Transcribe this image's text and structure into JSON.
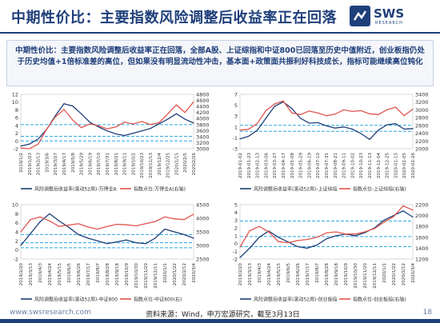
{
  "header": {
    "title": "中期性价比：主要指数风险调整后收益率正在回落",
    "logo_text": "SWS",
    "logo_sub": "RESEARCH",
    "colors": {
      "brand": "#1f3f7a",
      "accent_red": "#e0554f"
    }
  },
  "summary": {
    "text": "中期性价比：主要指数风险调整后收益率正在回落，全部A股、上证综指和中证800已回落至历史中值附近，创业板指仍处于历史均值+1倍标准差的高位，但如果没有明显流动性冲击，基本面+政策面共振利好科技成长，指标可能继续高位钝化"
  },
  "footer": {
    "url": "www.swsresearch.com",
    "source": "资料来源：Wind，申万宏源研究，截至3月13日",
    "page": "18"
  },
  "chart_data": [
    {
      "type": "line",
      "x": [
        "2019/1/2",
        "2019/1/23",
        "2019/2/18",
        "2019/3/7",
        "2019/3/27",
        "2019/4/17",
        "2019/5/8",
        "2019/5/29",
        "2019/6/19",
        "2019/7/10",
        "2019/7/31",
        "2019/8/21",
        "2019/9/11",
        "2019/10/2",
        "2019/10/23",
        "2019/11/13",
        "2019/12/4",
        "2019/12/25",
        "2020/1/15",
        "2020/2/5",
        "2020/2/26"
      ],
      "x_ticks": [
        "2019/1/2",
        "2019/1/23",
        "2019/2/13",
        "2019/3/6",
        "2019/3/27",
        "2019/4/17",
        "2019/5/8",
        "2019/5/29",
        "2019/6/19",
        "2019/7/10",
        "2019/7/31",
        "2019/8/21",
        "2019/9/11",
        "2019/10/2",
        "2019/10/23",
        "2019/11/13",
        "2019/12/4",
        "2019/12/25",
        "2020/1/15",
        "2020/2/5",
        "2020/2/26"
      ],
      "y_left_ticks": [
        "-2",
        "0",
        "2",
        "4",
        "6",
        "8",
        "10",
        "12"
      ],
      "y_right_ticks": [
        "3000",
        "3200",
        "3400",
        "3600",
        "3800",
        "4000",
        "4200",
        "4400",
        "4600",
        "4800"
      ],
      "ylim_left": [
        -2,
        12
      ],
      "ylim_right": [
        3000,
        4800
      ],
      "reference_lines": [
        0.0,
        1.2,
        4.2
      ],
      "series": [
        {
          "name": "风险调整后收益率(滚动52周)-万得全A",
          "axis": "left",
          "color": "#1f3f7a",
          "values": [
            -1.3,
            -0.8,
            0.5,
            3.0,
            6.5,
            9.6,
            9.0,
            7.0,
            4.8,
            3.6,
            2.6,
            1.8,
            1.4,
            2.0,
            2.6,
            3.2,
            4.4,
            5.6,
            7.0,
            5.6,
            4.6
          ]
        },
        {
          "name": "指数点位-万得全A(右轴)",
          "axis": "right",
          "color": "#e0554f",
          "values": [
            3020,
            3000,
            3150,
            3650,
            4050,
            4300,
            3950,
            3700,
            3820,
            3760,
            3660,
            3720,
            3880,
            3820,
            3900,
            3800,
            3860,
            4150,
            4450,
            4200,
            4550
          ]
        }
      ]
    },
    {
      "type": "line",
      "x": [
        "2019-01-02",
        "2019-01-23",
        "2019-02-13",
        "2019-03-06",
        "2019-03-27",
        "2019-04-17",
        "2019-05-08",
        "2019-05-29",
        "2019-06-19",
        "2019-07-10",
        "2019-07-31",
        "2019-08-21",
        "2019-09-11",
        "2019-10-02",
        "2019-10-23",
        "2019-11-13",
        "2019-12-04",
        "2019-12-25",
        "2020-01-15",
        "2020-02-05",
        "2020-02-26"
      ],
      "x_ticks": [
        "2019-01-02",
        "2019-01-23",
        "2019-02-13",
        "2019-03-06",
        "2019-03-27",
        "2019-04-17",
        "2019-05-08",
        "2019-05-29",
        "2019-06-19",
        "2019-07-10",
        "2019-07-31",
        "2019-08-21",
        "2019-09-11",
        "2019-10-02",
        "2019-10-23",
        "2019-11-13",
        "2019-12-04",
        "2019-12-25",
        "2020-01-15",
        "2020-02-05",
        "2020-02-26"
      ],
      "y_left_ticks": [
        "-3",
        "-1",
        "1",
        "3",
        "5",
        "7"
      ],
      "y_right_ticks": [
        "2000",
        "2200",
        "2400",
        "2600",
        "2800",
        "3000",
        "3200",
        "3400"
      ],
      "ylim_left": [
        -3,
        7
      ],
      "ylim_right": [
        2000,
        3400
      ],
      "reference_lines": [
        0.2,
        1.3
      ],
      "series": [
        {
          "name": "风险调整后收益率(滚动52周)-上证综指",
          "axis": "left",
          "color": "#1f3f7a",
          "values": [
            -1.2,
            -0.7,
            0.4,
            2.6,
            4.8,
            5.6,
            4.4,
            2.6,
            1.7,
            1.8,
            1.2,
            0.8,
            1.0,
            0.6,
            -0.2,
            -1.3,
            0.4,
            1.4,
            1.6,
            0.6,
            0.7
          ]
        },
        {
          "name": "指数点位-上证综指(右轴)",
          "axis": "right",
          "color": "#e0554f",
          "values": [
            2480,
            2500,
            2650,
            2980,
            3150,
            3230,
            2920,
            2880,
            2970,
            2920,
            2850,
            2890,
            3000,
            2960,
            2980,
            2900,
            2880,
            3000,
            3070,
            2850,
            3020
          ]
        }
      ]
    },
    {
      "type": "line",
      "x": [
        "2019/2/20",
        "2019/3/13",
        "2019/4/3",
        "2019/4/24",
        "2019/5/15",
        "2019/6/5",
        "2019/6/26",
        "2019/7/17",
        "2019/8/7",
        "2019/8/28",
        "2019/9/18",
        "2019/10/9",
        "2019/10/30",
        "2019/11/20",
        "2019/12/11",
        "2020/1/1",
        "2020/1/22",
        "2020/2/12",
        "2020/3/4"
      ],
      "x_ticks": [
        "2019/2/20",
        "2019/3/13",
        "2019/4/3",
        "2019/4/24",
        "2019/5/15",
        "2019/6/5",
        "2019/6/26",
        "2019/7/17",
        "2019/8/7",
        "2019/8/28",
        "2019/9/18",
        "2019/10/9",
        "2019/10/30",
        "2019/11/20",
        "2019/12/11",
        "2020/1/1",
        "2020/1/22",
        "2020/2/12",
        "2020/3/4"
      ],
      "y_left_ticks": [
        "-2",
        "0",
        "2",
        "4",
        "6",
        "8",
        "10"
      ],
      "y_right_ticks": [
        "2500",
        "3000",
        "3500",
        "4000",
        "4500"
      ],
      "ylim_left": [
        -2,
        10
      ],
      "ylim_right": [
        2500,
        4500
      ],
      "reference_lines": [
        0.5,
        1.6,
        3.4
      ],
      "series": [
        {
          "name": "风险调整后收益率(滚动52周)-中证800",
          "axis": "left",
          "color": "#1f3f7a",
          "values": [
            1.0,
            3.6,
            6.2,
            8.0,
            6.4,
            5.0,
            3.4,
            2.6,
            2.0,
            1.4,
            1.8,
            2.2,
            1.6,
            1.4,
            2.6,
            4.6,
            4.0,
            3.4,
            2.6
          ]
        },
        {
          "name": "指数点位-中证800(右)",
          "axis": "right",
          "color": "#e0554f",
          "values": [
            3500,
            3950,
            4050,
            3900,
            3700,
            3750,
            3800,
            3680,
            3600,
            3700,
            3780,
            3760,
            3720,
            3800,
            3880,
            4050,
            3980,
            3950,
            4150
          ]
        }
      ]
    },
    {
      "type": "line",
      "x": [
        "2019/2/20",
        "2019/3/13",
        "2019/4/3",
        "2019/4/24",
        "2019/5/15",
        "2019/6/5",
        "2019/6/26",
        "2019/7/17",
        "2019/8/7",
        "2019/8/28",
        "2019/9/18",
        "2019/10/9",
        "2019/10/30",
        "2019/11/20",
        "2019/12/11",
        "2020/1/1",
        "2020/1/22",
        "2020/2/12",
        "2020/3/4"
      ],
      "x_ticks": [
        "2019/2/20",
        "2019/3/13",
        "2019/4/3",
        "2019/4/24",
        "2019/5/15",
        "2019/6/5",
        "2019/6/26",
        "2019/7/17",
        "2019/8/7",
        "2019/8/28",
        "2019/9/18",
        "2019/10/9",
        "2019/10/30",
        "2019/11/20",
        "2019/12/11",
        "2020/1/1",
        "2020/1/22",
        "2020/2/12",
        "2020/3/4"
      ],
      "y_left_ticks": [
        "-2",
        "-1",
        "0",
        "1",
        "2",
        "3",
        "4",
        "5"
      ],
      "y_right_ticks": [
        "1200",
        "1400",
        "1600",
        "1800",
        "2000",
        "2200"
      ],
      "ylim_left": [
        -2,
        5
      ],
      "ylim_right": [
        1200,
        2200
      ],
      "reference_lines": [
        -0.4,
        0.9,
        2.9
      ],
      "series": [
        {
          "name": "风险调整后收益率(滚动52周)-创业板指",
          "axis": "left",
          "color": "#1f3f7a",
          "values": [
            -1.8,
            -0.6,
            0.8,
            1.6,
            0.8,
            0.2,
            -0.4,
            -0.6,
            -0.2,
            0.6,
            1.0,
            1.2,
            1.0,
            1.4,
            2.0,
            3.0,
            3.6,
            4.2,
            3.4
          ]
        },
        {
          "name": "指数点位-创业板指(右轴)",
          "axis": "right",
          "color": "#e0554f",
          "values": [
            1420,
            1720,
            1800,
            1700,
            1520,
            1500,
            1540,
            1560,
            1600,
            1680,
            1700,
            1660,
            1660,
            1700,
            1760,
            1880,
            1980,
            2180,
            2100
          ]
        }
      ]
    }
  ]
}
